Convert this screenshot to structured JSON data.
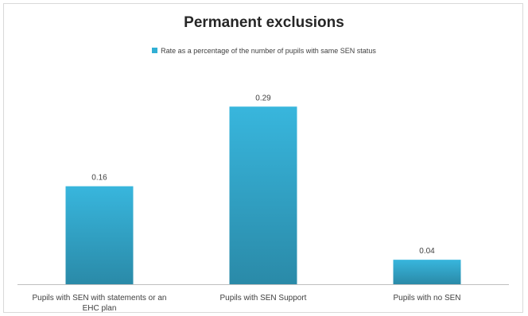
{
  "chart_data": {
    "type": "bar",
    "title": "Permanent exclusions",
    "categories": [
      "Pupils with SEN with statements or an EHC plan",
      "Pupils with SEN Support",
      "Pupils with no SEN"
    ],
    "series": [
      {
        "name": "Rate as a percentage of the number of pupils with same SEN status",
        "values": [
          0.16,
          0.29,
          0.04
        ],
        "labels": [
          "0.16",
          "0.29",
          "0.04"
        ]
      }
    ],
    "ylim": [
      0,
      0.35
    ],
    "grid": false,
    "legend": "top",
    "colors": {
      "bar_top": "#38b6dd",
      "bar_bottom": "#2a8aa8",
      "axis": "#bfbfbf"
    }
  }
}
